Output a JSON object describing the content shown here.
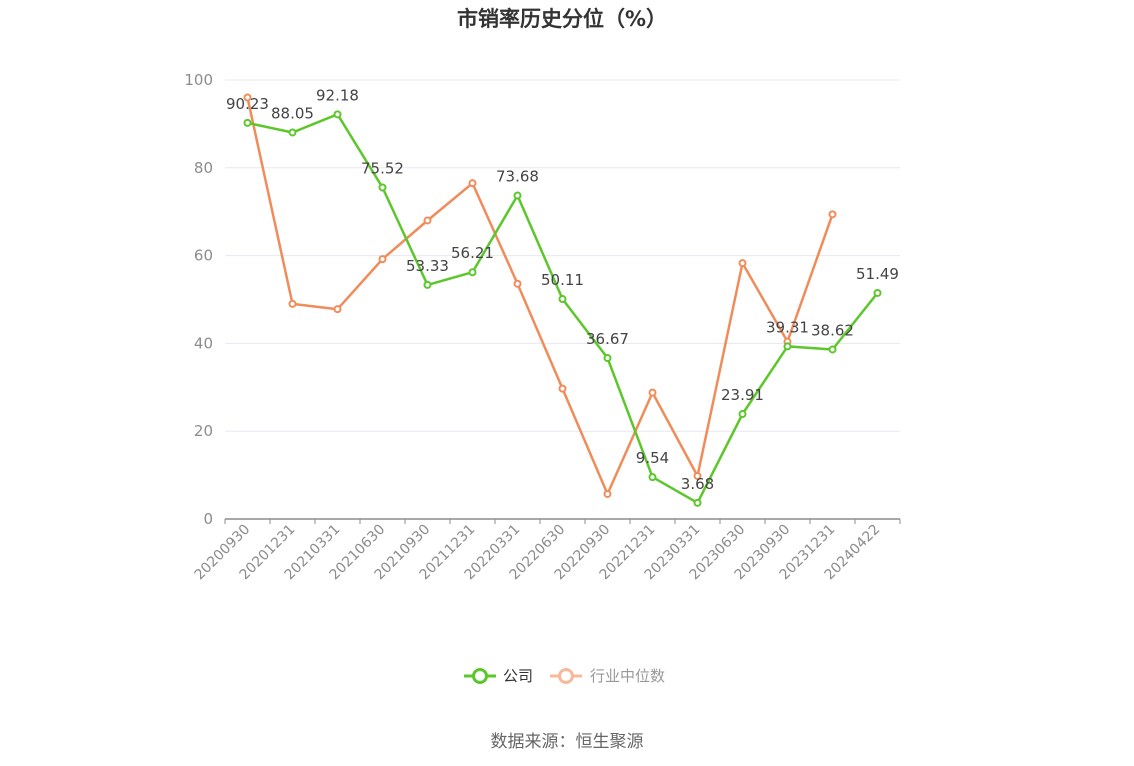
{
  "chart_data": {
    "type": "line",
    "title": "市销率历史分位（%）",
    "xlabel": "",
    "ylabel": "",
    "categories": [
      "20200930",
      "20201231",
      "20210331",
      "20210630",
      "20210930",
      "20211231",
      "20220331",
      "20220630",
      "20220930",
      "20221231",
      "20230331",
      "20230630",
      "20230930",
      "20231231",
      "20240422"
    ],
    "ylim": [
      0,
      100
    ],
    "yticks": [
      "0",
      "20",
      "40",
      "60",
      "80",
      "100"
    ],
    "grid": true,
    "legend_position": "bottom-center",
    "series": [
      {
        "name": "公司",
        "color": "#5cc72b",
        "values": [
          90.23,
          88.05,
          92.18,
          75.52,
          53.33,
          56.21,
          73.68,
          50.11,
          36.67,
          9.54,
          3.68,
          23.91,
          39.31,
          38.62,
          51.49
        ],
        "labels": [
          "90.23",
          "88.05",
          "92.18",
          "75.52",
          "53.33",
          "56.21",
          "73.68",
          "50.11",
          "36.67",
          "9.54",
          "3.68",
          "23.91",
          "39.31",
          "38.62",
          "51.49"
        ]
      },
      {
        "name": "行业中位数",
        "color": "#f08c5a",
        "values": [
          96,
          49,
          47.8,
          59.2,
          68,
          76.5,
          53.6,
          29.7,
          5.7,
          28.8,
          9.8,
          58.3,
          40.4,
          69.4,
          null
        ]
      }
    ]
  },
  "legend": {
    "company_label": "公司",
    "industry_label": "行业中位数",
    "company_color": "#5cc72b",
    "industry_color": "#f8b89a"
  },
  "footer": {
    "source": "数据来源：恒生聚源"
  }
}
